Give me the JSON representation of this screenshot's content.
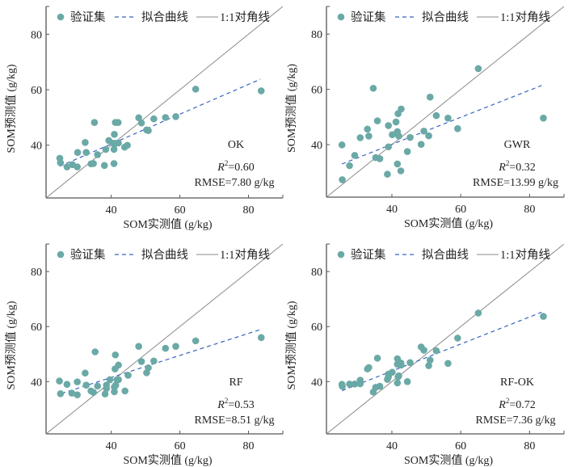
{
  "chart_data": [
    {
      "type": "scatter",
      "model": "OK",
      "xlabel": "SOM实测值 (g/kg)",
      "ylabel": "SOM预测值 (g/kg)",
      "xlim": [
        21,
        90
      ],
      "ylim": [
        21,
        90
      ],
      "xticks": [
        40,
        60,
        80
      ],
      "yticks": [
        40,
        60,
        80
      ],
      "legend": {
        "placement": "top-left",
        "entries": [
          "验证集",
          "拟合曲线",
          "1:1对角线"
        ]
      },
      "annotation": {
        "r2_prefix": "R",
        "r2_sup": "2",
        "r2_value": "=0.60",
        "rmse": "RMSE=7.80 g/kg"
      },
      "fit_line": {
        "x": [
          25,
          83.5
        ],
        "y": [
          32.4,
          63.8
        ]
      },
      "points": {
        "x": [
          25.0,
          25.2,
          27.1,
          28.7,
          30.1,
          30.2,
          32.4,
          32.7,
          34.1,
          34.8,
          35.1,
          36.0,
          38.0,
          38.4,
          39.3,
          40.8,
          40.8,
          40.6,
          40.9,
          41.2,
          42.0,
          41.4,
          42.1,
          43.9,
          44.7,
          48.0,
          48.8,
          50.3,
          50.8,
          52.4,
          55.8,
          58.8,
          64.6,
          83.7
        ],
        "y": [
          35.3,
          33.7,
          32.2,
          33.0,
          32.2,
          37.4,
          41.0,
          37.4,
          33.3,
          33.4,
          48.2,
          36.6,
          32.7,
          38.5,
          41.7,
          33.4,
          38.5,
          40.7,
          43.9,
          48.2,
          48.2,
          40.7,
          40.8,
          39.3,
          40.0,
          49.9,
          48.0,
          45.5,
          45.3,
          49.5,
          50.0,
          50.3,
          60.2,
          59.6
        ]
      }
    },
    {
      "type": "scatter",
      "model": "GWR",
      "xlabel": "SOM实测值 (g/kg)",
      "ylabel": "SOM预测值 (g/kg)",
      "xlim": [
        21,
        90
      ],
      "ylim": [
        21,
        90
      ],
      "xticks": [
        40,
        60,
        80
      ],
      "yticks": [
        40,
        60,
        80
      ],
      "legend": {
        "placement": "top-left",
        "entries": [
          "验证集",
          "拟合曲线",
          "1:1对角线"
        ]
      },
      "annotation": {
        "r2_prefix": "R",
        "r2_sup": "2",
        "r2_value": "=0.32",
        "rmse": "RMSE=13.99 g/kg"
      },
      "fit_line": {
        "x": [
          25.5,
          83.5
        ],
        "y": [
          33.0,
          61.4
        ]
      },
      "points": {
        "x": [
          25.5,
          25.6,
          27.7,
          29.2,
          30.8,
          32.9,
          33.3,
          34.6,
          35.3,
          35.8,
          36.5,
          38.7,
          39.0,
          39.0,
          40.1,
          41.2,
          41.6,
          41.6,
          41.8,
          42.0,
          42.6,
          42.7,
          44.5,
          45.3,
          48.5,
          49.3,
          50.7,
          51.1,
          52.9,
          56.3,
          59.1,
          65.1,
          84.0
        ],
        "y": [
          39.9,
          27.3,
          32.4,
          36.1,
          42.5,
          45.6,
          43.1,
          60.4,
          35.3,
          48.6,
          34.9,
          29.3,
          46.9,
          39.2,
          43.6,
          48.2,
          44.7,
          33.0,
          51.2,
          43.1,
          30.5,
          52.9,
          37.5,
          42.6,
          40.1,
          44.9,
          43.2,
          57.2,
          50.5,
          49.6,
          45.8,
          67.5,
          49.6
        ]
      }
    },
    {
      "type": "scatter",
      "model": "RF",
      "xlabel": "SOM实测值 (g/kg)",
      "ylabel": "SOM预测值 (g/kg)",
      "xlim": [
        21,
        90
      ],
      "ylim": [
        21,
        90
      ],
      "xticks": [
        40,
        60,
        80
      ],
      "yticks": [
        40,
        60,
        80
      ],
      "legend": {
        "placement": "top-left",
        "entries": [
          "验证集",
          "拟合曲线",
          "1:1对角线"
        ]
      },
      "annotation": {
        "r2_prefix": "R",
        "r2_sup": "2",
        "r2_value": "=0.53",
        "rmse": "RMSE=8.51 g/kg"
      },
      "fit_line": {
        "x": [
          25.5,
          83.7
        ],
        "y": [
          35.7,
          59.0
        ]
      },
      "points": {
        "x": [
          24.9,
          25.2,
          27.1,
          28.5,
          30.1,
          30.1,
          32.4,
          32.7,
          34.1,
          34.8,
          35.3,
          36.0,
          38.2,
          38.6,
          38.6,
          39.6,
          40.9,
          40.9,
          41.1,
          41.2,
          41.3,
          41.7,
          42.1,
          42.1,
          44.0,
          44.9,
          48.0,
          48.8,
          50.3,
          50.8,
          52.4,
          55.8,
          58.8,
          64.6,
          83.7
        ],
        "y": [
          40.2,
          35.6,
          39.0,
          35.8,
          39.9,
          35.2,
          43.1,
          38.7,
          36.6,
          36.1,
          50.8,
          38.4,
          35.5,
          38.7,
          37.5,
          40.7,
          36.3,
          38.0,
          44.6,
          49.7,
          38.7,
          40.7,
          46.0,
          40.7,
          36.6,
          42.3,
          52.8,
          47.3,
          43.2,
          45.0,
          47.5,
          52.1,
          52.8,
          54.8,
          56.0
        ]
      }
    },
    {
      "type": "scatter",
      "model": "RF-OK",
      "xlabel": "SOM实测值 (g/kg)",
      "ylabel": "SOM预测值 (g/kg)",
      "xlim": [
        21,
        90
      ],
      "ylim": [
        21,
        90
      ],
      "xticks": [
        40,
        60,
        80
      ],
      "yticks": [
        40,
        60,
        80
      ],
      "legend": {
        "placement": "top-left",
        "entries": [
          "验证集",
          "拟合曲线",
          "1:1对角线"
        ]
      },
      "annotation": {
        "r2_prefix": "R",
        "r2_sup": "2",
        "r2_value": "=0.72",
        "rmse": "RMSE=7.36 g/kg"
      },
      "fit_line": {
        "x": [
          25.5,
          83.5
        ],
        "y": [
          36.7,
          65.2
        ]
      },
      "points": {
        "x": [
          25.5,
          25.6,
          27.7,
          29.2,
          30.8,
          30.8,
          32.9,
          33.3,
          34.6,
          35.3,
          35.8,
          36.5,
          38.7,
          39.0,
          39.0,
          40.1,
          41.6,
          41.6,
          41.6,
          41.8,
          42.0,
          42.6,
          42.7,
          44.5,
          45.3,
          48.5,
          49.3,
          50.7,
          51.1,
          52.9,
          56.3,
          59.1,
          65.1,
          84.0
        ],
        "y": [
          39.0,
          38.3,
          39.1,
          39.1,
          40.5,
          39.2,
          44.6,
          45.1,
          36.2,
          37.9,
          48.5,
          38.3,
          40.8,
          42.7,
          41.7,
          43.4,
          48.3,
          46.3,
          39.5,
          41.7,
          42.1,
          46.8,
          46.0,
          40.0,
          46.9,
          52.6,
          51.4,
          45.8,
          47.8,
          51.2,
          46.6,
          55.8,
          64.9,
          63.7
        ]
      }
    }
  ],
  "colors": {
    "points": "#6aa9a6",
    "fit_line": "#3a64c0",
    "diagonal": "#8a8a8a",
    "axis": "#555555",
    "text": "#222222"
  }
}
